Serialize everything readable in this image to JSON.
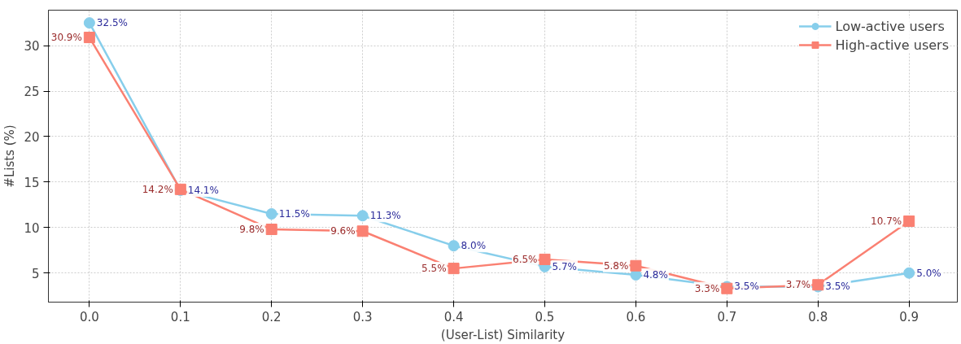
{
  "chart_data": {
    "type": "line",
    "xlabel": "(User-List) Similarity",
    "ylabel": "#Lists (%)",
    "x": [
      0.0,
      0.1,
      0.2,
      0.3,
      0.4,
      0.5,
      0.6,
      0.7,
      0.8,
      0.9
    ],
    "series": [
      {
        "name": "Low-active users",
        "color": "#87ceeb",
        "marker": "circle",
        "values": [
          32.5,
          14.1,
          11.5,
          11.3,
          8.0,
          5.7,
          4.8,
          3.5,
          3.5,
          5.0
        ],
        "value_labels": [
          "32.5%",
          "14.1%",
          "11.5%",
          "11.3%",
          "8.0%",
          "5.7%",
          "4.8%",
          "3.5%",
          "3.5%",
          "5.0%"
        ]
      },
      {
        "name": "High-active users",
        "color": "#fa8072",
        "marker": "square",
        "values": [
          30.9,
          14.2,
          9.8,
          9.6,
          5.5,
          6.5,
          5.8,
          3.3,
          3.7,
          10.7
        ],
        "value_labels": [
          "30.9%",
          "14.2%",
          "9.8%",
          "9.6%",
          "5.5%",
          "6.5%",
          "5.8%",
          "3.3%",
          "3.7%",
          "10.7%"
        ]
      }
    ],
    "xlim": [
      -0.045,
      0.953
    ],
    "ylim": [
      1.8,
      33.9
    ],
    "xticks": [
      {
        "value": 0.0,
        "label": "0.0"
      },
      0.1,
      0.2,
      0.3,
      0.4,
      0.5,
      0.6,
      0.7,
      0.8,
      0.9
    ],
    "yticks": [
      5,
      10,
      15,
      20,
      25,
      30
    ],
    "grid": true,
    "legend": "top right",
    "line_style": "solid"
  }
}
